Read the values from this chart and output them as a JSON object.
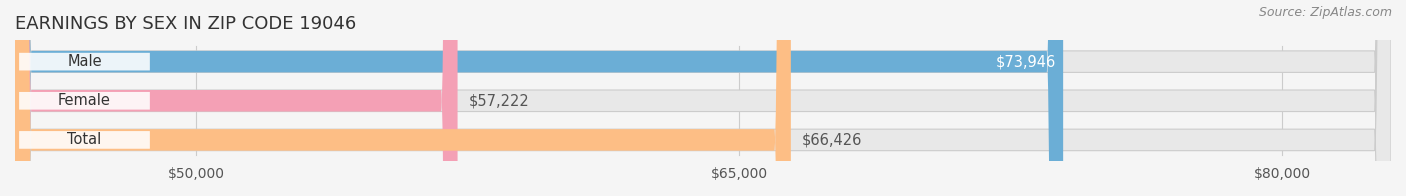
{
  "title": "EARNINGS BY SEX IN ZIP CODE 19046",
  "source": "Source: ZipAtlas.com",
  "categories": [
    "Male",
    "Female",
    "Total"
  ],
  "values": [
    73946,
    57222,
    66426
  ],
  "bar_colors": [
    "#6baed6",
    "#f4a0b5",
    "#fdbe85"
  ],
  "label_colors": [
    "#ffffff",
    "#555555",
    "#555555"
  ],
  "value_labels": [
    "$73,946",
    "$57,222",
    "$66,426"
  ],
  "bar_bg_color": "#e8e8e8",
  "xlim_min": 45000,
  "xlim_max": 83000,
  "xticks": [
    50000,
    65000,
    80000
  ],
  "xtick_labels": [
    "$50,000",
    "$65,000",
    "$80,000"
  ],
  "title_fontsize": 13,
  "tick_fontsize": 10,
  "label_fontsize": 10.5,
  "value_fontsize": 10.5,
  "source_fontsize": 9,
  "bar_height": 0.55,
  "background_color": "#f5f5f5"
}
